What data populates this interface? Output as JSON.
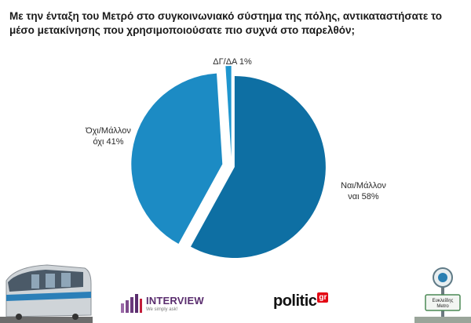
{
  "question": "Με την ένταξη του Μετρό στο συγκοινωνιακό σύστημα της πόλης, αντικαταστήσατε το μέσο μετακίνησης που χρησιμοποιούσατε πιο συχνά στο παρελθόν;",
  "chart_data": {
    "type": "pie",
    "title": "Με την ένταξη του Μετρό στο συγκοινωνιακό σύστημα της πόλης, αντικαταστήσατε το μέσο μετακίνησης που χρησιμοποιούσατε πιο συχνά στο παρελθόν;",
    "slices": [
      {
        "label_line1": "Ναι/Μάλλον",
        "label_line2": "ναι 58%",
        "value": 58,
        "color": "#0e6fa3"
      },
      {
        "label_line1": "Όχι/Μάλλον",
        "label_line2": "όχι 41%",
        "value": 41,
        "color": "#1c8bc4"
      },
      {
        "label_line1": "ΔΓ/ΔΑ 1%",
        "label_line2": "",
        "value": 1,
        "color": "#1f96cf"
      }
    ]
  },
  "footer": {
    "interview_name": "INTERVIEW",
    "interview_tagline": "We simply ask!",
    "politic_name": "politic",
    "politic_suffix": "gr",
    "station_sign_line1": "Ευκλείδης",
    "station_sign_line2": "Metro"
  },
  "colors": {
    "accent_purple": "#5a2d6e",
    "accent_red": "#e30613"
  }
}
